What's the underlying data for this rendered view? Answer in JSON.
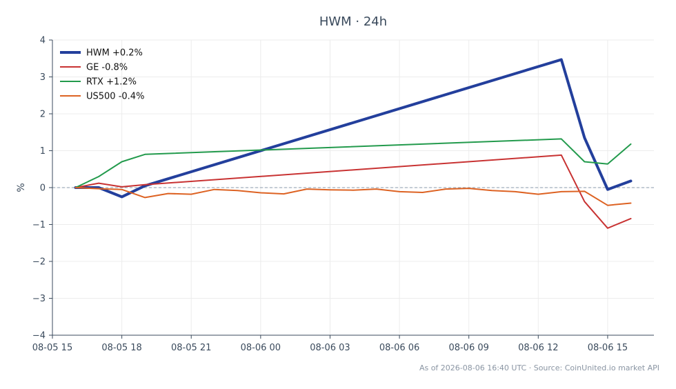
{
  "chart_data": {
    "type": "line",
    "title": "HWM · 24h",
    "xlabel": "",
    "ylabel": "%",
    "ylim": [
      -4,
      4
    ],
    "xlim": [
      "2026-08-05 15:00",
      "2026-08-06 17:00"
    ],
    "yticks": [
      4,
      3,
      2,
      1,
      0,
      -1,
      -2,
      -3,
      -4
    ],
    "ytick_labels": [
      "4",
      "3",
      "2",
      "1",
      "0",
      "−1",
      "−2",
      "−3",
      "−4"
    ],
    "xtick_labels": [
      "08-05 15",
      "08-05 18",
      "08-05 21",
      "08-06 00",
      "08-06 03",
      "08-06 06",
      "08-06 09",
      "08-06 12",
      "08-06 15"
    ],
    "zero_line": true,
    "grid": true,
    "legend_position": "top-left",
    "series": [
      {
        "name": "HWM +0.2%",
        "color": "#233f9c",
        "width": 4,
        "points": [
          [
            "2026-08-05 16:00",
            0.0
          ],
          [
            "2026-08-05 17:00",
            0.0
          ],
          [
            "2026-08-05 18:00",
            -0.25
          ],
          [
            "2026-08-05 19:00",
            0.05
          ],
          [
            "2026-08-06 13:00",
            3.47
          ],
          [
            "2026-08-06 14:00",
            1.35
          ],
          [
            "2026-08-06 15:00",
            -0.05
          ],
          [
            "2026-08-06 16:00",
            0.18
          ]
        ]
      },
      {
        "name": "GE -0.8%",
        "color": "#c83232",
        "width": 2,
        "points": [
          [
            "2026-08-05 16:00",
            0.0
          ],
          [
            "2026-08-05 17:00",
            0.12
          ],
          [
            "2026-08-05 18:00",
            0.02
          ],
          [
            "2026-08-05 19:00",
            0.08
          ],
          [
            "2026-08-06 13:00",
            0.88
          ],
          [
            "2026-08-06 14:00",
            -0.38
          ],
          [
            "2026-08-06 15:00",
            -1.1
          ],
          [
            "2026-08-06 16:00",
            -0.84
          ]
        ]
      },
      {
        "name": "RTX +1.2%",
        "color": "#229a4c",
        "width": 2,
        "points": [
          [
            "2026-08-05 16:00",
            0.0
          ],
          [
            "2026-08-05 17:00",
            0.3
          ],
          [
            "2026-08-05 18:00",
            0.7
          ],
          [
            "2026-08-05 19:00",
            0.9
          ],
          [
            "2026-08-06 13:00",
            1.32
          ],
          [
            "2026-08-06 14:00",
            0.7
          ],
          [
            "2026-08-06 15:00",
            0.64
          ],
          [
            "2026-08-06 16:00",
            1.18
          ]
        ]
      },
      {
        "name": "US500 -0.4%",
        "color": "#dd6222",
        "width": 2,
        "points": [
          [
            "2026-08-05 16:00",
            0.0
          ],
          [
            "2026-08-05 17:00",
            -0.03
          ],
          [
            "2026-08-05 18:00",
            -0.05
          ],
          [
            "2026-08-05 19:00",
            -0.27
          ],
          [
            "2026-08-05 20:00",
            -0.16
          ],
          [
            "2026-08-05 21:00",
            -0.18
          ],
          [
            "2026-08-05 22:00",
            -0.05
          ],
          [
            "2026-08-05 23:00",
            -0.08
          ],
          [
            "2026-08-06 00:00",
            -0.14
          ],
          [
            "2026-08-06 01:00",
            -0.17
          ],
          [
            "2026-08-06 02:00",
            -0.04
          ],
          [
            "2026-08-06 03:00",
            -0.06
          ],
          [
            "2026-08-06 04:00",
            -0.07
          ],
          [
            "2026-08-06 05:00",
            -0.04
          ],
          [
            "2026-08-06 06:00",
            -0.11
          ],
          [
            "2026-08-06 07:00",
            -0.13
          ],
          [
            "2026-08-06 08:00",
            -0.04
          ],
          [
            "2026-08-06 09:00",
            -0.02
          ],
          [
            "2026-08-06 10:00",
            -0.08
          ],
          [
            "2026-08-06 11:00",
            -0.11
          ],
          [
            "2026-08-06 12:00",
            -0.18
          ],
          [
            "2026-08-06 13:00",
            -0.11
          ],
          [
            "2026-08-06 14:00",
            -0.1
          ],
          [
            "2026-08-06 15:00",
            -0.48
          ],
          [
            "2026-08-06 16:00",
            -0.42
          ]
        ]
      }
    ]
  },
  "footer": "As of 2026-08-06 16:40 UTC · Source: CoinUnited.io market API"
}
